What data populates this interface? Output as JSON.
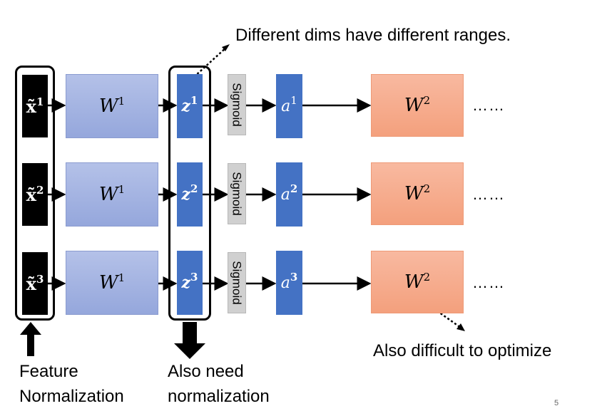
{
  "annotations": {
    "top": "Different dims have different ranges.",
    "bottom_right": "Also difficult to optimize",
    "feature_norm_line1": "Feature",
    "feature_norm_line2": "Normalization",
    "also_need_line1": "Also need",
    "also_need_line2": "normalization"
  },
  "rows": [
    {
      "x_sub": "1",
      "w1_sup": "1",
      "z_sup": "1",
      "sigmoid": "Sigmoid",
      "a_sup": "1",
      "w2_sup": "2",
      "ellipsis": "……"
    },
    {
      "x_sub": "2",
      "w1_sup": "1",
      "z_sup": "2",
      "sigmoid": "Sigmoid",
      "a_sup": "2",
      "w2_sup": "2",
      "ellipsis": "……"
    },
    {
      "x_sub": "3",
      "w1_sup": "1",
      "z_sup": "3",
      "sigmoid": "Sigmoid",
      "a_sup": "3",
      "w2_sup": "2",
      "ellipsis": "……"
    }
  ],
  "symbols": {
    "x": "x̃",
    "w": "W",
    "z": "z",
    "a": "a"
  },
  "page_number": "5",
  "colors": {
    "w1": "#9fb0e0",
    "z_a": "#4472c4",
    "w2": "#f4a583",
    "sigmoid": "#d0d0d0",
    "x": "#000000"
  }
}
